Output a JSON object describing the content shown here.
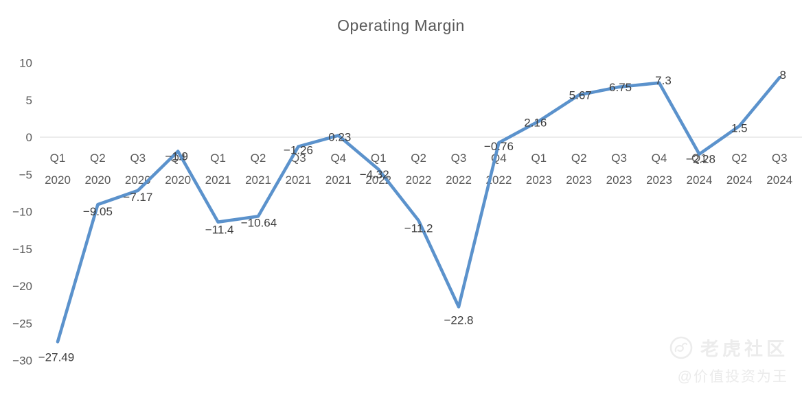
{
  "title": "Operating Margin",
  "watermark": {
    "brand": "老虎社区",
    "handle": "@价值投资为王",
    "logo_icon": "tiger-logo-icon"
  },
  "colors": {
    "line": "#5B92CC",
    "grid": "#D9D9D9",
    "title_text": "#595959",
    "axis_text": "#595959",
    "data_label_text": "#3D3D3D",
    "watermark_text": "#ECECEC",
    "background": "#FFFFFF"
  },
  "chart_data": {
    "type": "line",
    "title": "Operating Margin",
    "categories": [
      "Q1 2020",
      "Q2 2020",
      "Q3 2020",
      "Q4 2020",
      "Q1 2021",
      "Q2 2021",
      "Q3 2021",
      "Q4 2021",
      "Q1 2022",
      "Q2 2022",
      "Q3 2022",
      "Q4 2022",
      "Q1 2023",
      "Q2 2023",
      "Q3 2023",
      "Q4 2023",
      "Q1 2024",
      "Q2 2024",
      "Q3 2024"
    ],
    "values": [
      -27.49,
      -9.05,
      -7.17,
      -1.9,
      -11.4,
      -10.64,
      -1.26,
      0.23,
      -4.32,
      -11.2,
      -22.8,
      -0.76,
      2.16,
      5.67,
      6.75,
      7.3,
      -2.28,
      1.5,
      8
    ],
    "data_labels": [
      "−27.49",
      "−9.05",
      "−7.17",
      "−1.9",
      "−11.4",
      "−10.64",
      "−1.26",
      "0.23",
      "−4.32",
      "−11.2",
      "−22.8",
      "−0.76",
      "2.16",
      "5.67",
      "6.75",
      "7.3",
      "−2.28",
      "1.5",
      "8"
    ],
    "y_ticks": [
      10,
      5,
      0,
      -5,
      -10,
      -15,
      -20,
      -25,
      -30
    ],
    "y_tick_labels": [
      "10",
      "5",
      "0",
      "−5",
      "−10",
      "−15",
      "−20",
      "−25",
      "−30"
    ],
    "ylim": [
      -30,
      10
    ],
    "xlabel": "",
    "ylabel": "",
    "legend": "none",
    "grid": "zero-line-only"
  }
}
